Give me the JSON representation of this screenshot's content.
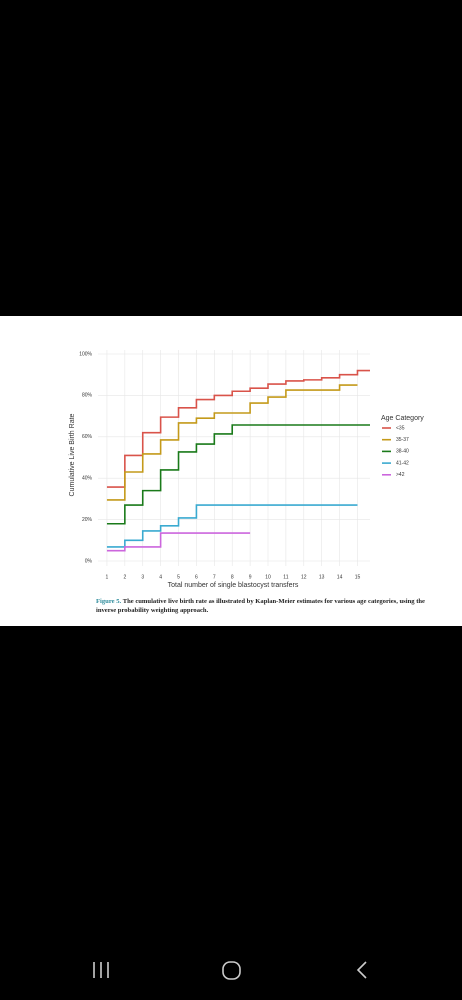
{
  "chart_data": {
    "type": "step",
    "xlabel": "Total number of single blastocyst transfers",
    "ylabel": "Cumulative Live Birth Rate",
    "legend_title": "Age Category",
    "legend": "right",
    "grid": true,
    "xlim": [
      0.5,
      15.7
    ],
    "xticks": [
      1,
      2,
      3,
      4,
      5,
      6,
      7,
      8,
      9,
      10,
      11,
      12,
      13,
      14,
      15
    ],
    "ylim": [
      0,
      100
    ],
    "yticks": [
      {
        "value": 0,
        "label": "0%"
      },
      {
        "value": 20,
        "label": "20%"
      },
      {
        "value": 40,
        "label": "40%"
      },
      {
        "value": 60,
        "label": "60%"
      },
      {
        "value": 80,
        "label": "80%"
      },
      {
        "value": 100,
        "label": "100%"
      }
    ],
    "series": [
      {
        "name": "<35",
        "color": "#d9534a",
        "x": [
          1,
          2,
          3,
          4,
          5,
          6,
          7,
          8,
          9,
          10,
          11,
          12,
          13,
          14,
          15,
          15.7
        ],
        "values": [
          35.7,
          51,
          62,
          69.5,
          74,
          78,
          80,
          82,
          83.5,
          85.5,
          87,
          87.5,
          88.5,
          90,
          92,
          92
        ]
      },
      {
        "name": "35-37",
        "color": "#c49a1a",
        "x": [
          1,
          2,
          3,
          4,
          5,
          6,
          7,
          9,
          10,
          11,
          14,
          15
        ],
        "values": [
          29.5,
          43,
          51.7,
          58.5,
          66.7,
          69,
          71.5,
          76.3,
          79.2,
          82.6,
          85,
          85
        ]
      },
      {
        "name": "38-40",
        "color": "#1a7a1a",
        "x": [
          1,
          2,
          3,
          4,
          5,
          6,
          7,
          8,
          15.7
        ],
        "values": [
          18,
          27,
          34,
          44,
          52.7,
          56.5,
          61.4,
          65.7,
          65.7
        ]
      },
      {
        "name": "41-42",
        "color": "#3aaad0",
        "x": [
          1,
          2,
          3,
          4,
          5,
          6,
          15
        ],
        "values": [
          6.8,
          10,
          14.5,
          17,
          20.8,
          27,
          27
        ]
      },
      {
        "name": ">42",
        "color": "#cc66dd",
        "x": [
          1,
          2,
          4,
          9
        ],
        "values": [
          5,
          6.8,
          13.5,
          13.5
        ]
      }
    ]
  },
  "caption": {
    "label": "Figure 5.",
    "text": "The cumulative live birth rate as illustrated by Kaplan-Meier estimates for various age categories, using the inverse probability weighting approach."
  }
}
